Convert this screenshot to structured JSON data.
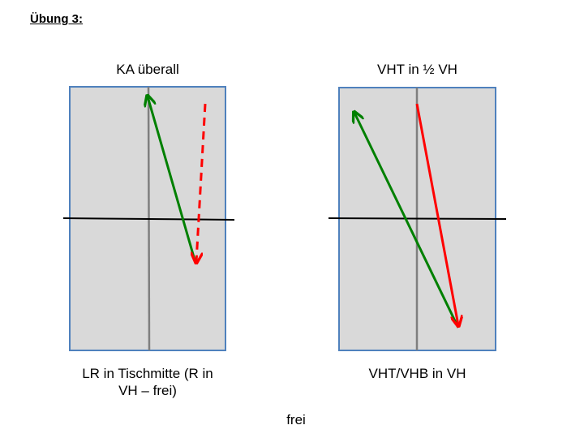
{
  "heading": "Übung 3:",
  "panels": [
    {
      "top_label": "KA überall",
      "bottom_label_lines": [
        "LR in Tischmitte (R in",
        "VH – frei)"
      ]
    },
    {
      "top_label": "VHT in ½ VH",
      "bottom_label_lines": [
        "VHT/VHB in VH"
      ]
    }
  ],
  "footer": "frei",
  "colors": {
    "table_fill": "#d9d9d9",
    "table_border": "#4f81bd",
    "center_line": "#7f7f7f",
    "net_line": "#000000",
    "green_arrow": "#008000",
    "red_arrow": "#ff0000"
  }
}
